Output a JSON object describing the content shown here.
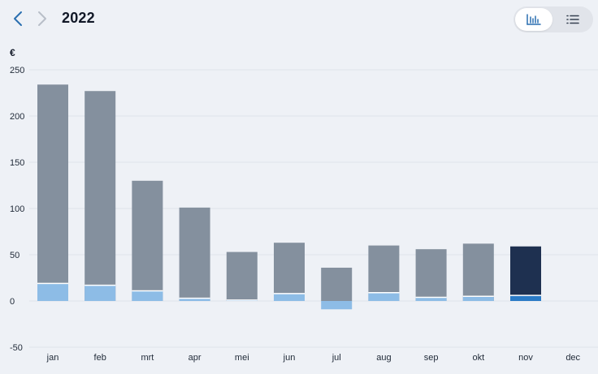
{
  "header": {
    "year": "2022",
    "prev_icon": "chevron-left-icon",
    "next_icon": "chevron-right-icon",
    "view_toggle": {
      "options": [
        {
          "name": "bar-chart-icon",
          "selected": true
        },
        {
          "name": "list-icon",
          "selected": false
        }
      ]
    }
  },
  "colors": {
    "total_bar": "#84909e",
    "base_bar": "#8dbce6",
    "highlight_total": "#1e3050",
    "highlight_base": "#2a7ac6",
    "nav_active": "#2a6fb0",
    "nav_inactive": "#b8bec8",
    "toggle_active": "#2a6fb0",
    "toggle_inactive": "#374151"
  },
  "chart_data": {
    "type": "bar",
    "unit": "€",
    "categories": [
      "jan",
      "feb",
      "mrt",
      "apr",
      "mei",
      "jun",
      "jul",
      "aug",
      "sep",
      "okt",
      "nov",
      "dec"
    ],
    "series": [
      {
        "values": [
          234,
          227,
          130,
          101,
          53,
          63,
          36,
          60,
          56,
          62,
          59,
          null
        ]
      },
      {
        "values": [
          19,
          17,
          11,
          3,
          1,
          8,
          -9,
          9,
          4,
          5,
          6,
          null
        ]
      }
    ],
    "highlight_index": 10,
    "yticks": [
      250,
      200,
      150,
      100,
      50,
      0,
      -50
    ],
    "ylim": [
      -50,
      250
    ],
    "grid": true
  }
}
